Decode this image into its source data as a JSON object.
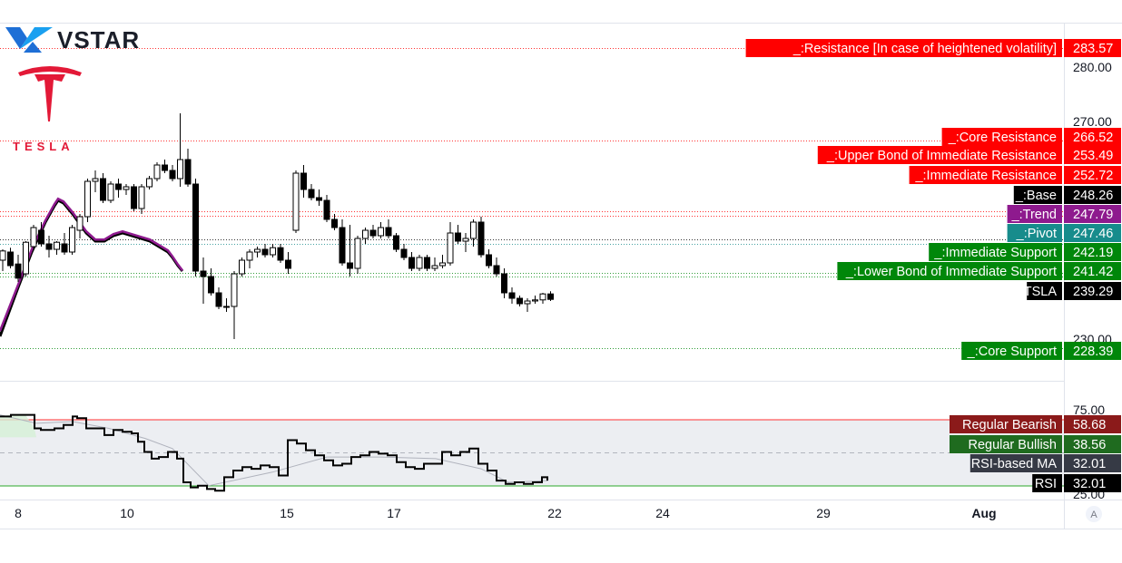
{
  "brand": {
    "name": "VSTAR",
    "tesla_wordmark": "TESLA"
  },
  "colors": {
    "resistance": "#ff0000",
    "support": "#00870a",
    "base": "#000000",
    "trend": "#8e1a8e",
    "pivot": "#178c8c",
    "price": "#000000",
    "rsi_bearish": "#8b1a1a",
    "rsi_bullish": "#1f6b1f",
    "rsi_ma": "#363a45",
    "upper_band_line": "#ff3030",
    "lower_band_line": "#2ba82b"
  },
  "chart_data": [
    {
      "type": "candlestick",
      "symbol": "TSLA",
      "x_ticks": [
        "8",
        "10",
        "15",
        "17",
        "22",
        "24",
        "29",
        "Aug"
      ],
      "y_ticks": [
        230.0,
        270.0,
        280.0
      ],
      "y_tick_labels": [
        "230.00",
        "270.00",
        "280.00"
      ],
      "ylim": [
        224,
        290
      ],
      "candles": [
        [
          244.5,
          246.5,
          242.5,
          246.2
        ],
        [
          246.0,
          246.8,
          243.0,
          243.5
        ],
        [
          243.8,
          245.5,
          240.5,
          241.2
        ],
        [
          242.0,
          248.0,
          241.5,
          247.8
        ],
        [
          247.0,
          251.0,
          246.5,
          250.5
        ],
        [
          250.0,
          251.5,
          247.0,
          247.5
        ],
        [
          247.5,
          249.0,
          245.0,
          246.5
        ],
        [
          246.5,
          248.0,
          245.5,
          247.8
        ],
        [
          247.5,
          249.5,
          245.5,
          246.0
        ],
        [
          246.0,
          251.0,
          245.5,
          250.5
        ],
        [
          250.0,
          253.0,
          248.5,
          252.5
        ],
        [
          252.5,
          259.5,
          251.5,
          259.0
        ],
        [
          259.0,
          261.0,
          257.0,
          259.5
        ],
        [
          259.5,
          260.5,
          255.0,
          255.5
        ],
        [
          255.5,
          259.0,
          255.0,
          258.5
        ],
        [
          258.5,
          259.5,
          256.0,
          257.5
        ],
        [
          257.5,
          258.5,
          256.5,
          258.0
        ],
        [
          258.0,
          258.5,
          253.5,
          254.0
        ],
        [
          254.0,
          258.5,
          253.0,
          258.0
        ],
        [
          258.0,
          260.0,
          257.5,
          259.5
        ],
        [
          259.5,
          262.5,
          259.0,
          262.0
        ],
        [
          262.0,
          263.0,
          260.5,
          261.0
        ],
        [
          261.0,
          262.0,
          259.0,
          259.5
        ],
        [
          259.5,
          271.5,
          258.0,
          263.0
        ],
        [
          263.0,
          265.0,
          258.0,
          258.5
        ],
        [
          258.5,
          259.5,
          241.5,
          242.5
        ],
        [
          242.5,
          245.0,
          236.5,
          241.5
        ],
        [
          241.5,
          243.0,
          238.0,
          238.5
        ],
        [
          238.5,
          239.5,
          235.5,
          236.0
        ],
        [
          236.0,
          237.5,
          235.0,
          236.0
        ],
        [
          236.0,
          242.5,
          230.0,
          242.0
        ],
        [
          242.0,
          245.0,
          241.5,
          244.5
        ],
        [
          244.5,
          246.5,
          243.0,
          246.0
        ],
        [
          246.0,
          247.0,
          245.0,
          246.5
        ],
        [
          246.5,
          247.5,
          245.0,
          245.5
        ],
        [
          245.5,
          247.5,
          245.0,
          246.8
        ],
        [
          246.8,
          247.5,
          244.0,
          244.5
        ],
        [
          244.5,
          246.0,
          242.0,
          243.0
        ],
        [
          250.0,
          261.0,
          249.5,
          260.5
        ],
        [
          260.5,
          262.0,
          256.0,
          257.5
        ],
        [
          257.5,
          258.5,
          255.5,
          256.0
        ],
        [
          256.0,
          257.5,
          254.5,
          255.5
        ],
        [
          255.5,
          256.5,
          251.5,
          252.0
        ],
        [
          252.0,
          253.0,
          250.0,
          250.5
        ],
        [
          250.5,
          252.0,
          243.5,
          244.0
        ],
        [
          244.0,
          251.0,
          241.5,
          243.0
        ],
        [
          243.0,
          249.0,
          242.0,
          248.5
        ],
        [
          248.5,
          250.5,
          247.5,
          250.0
        ],
        [
          250.0,
          251.0,
          248.5,
          249.0
        ],
        [
          249.0,
          251.5,
          248.5,
          250.5
        ],
        [
          250.5,
          252.0,
          248.5,
          249.0
        ],
        [
          249.0,
          249.5,
          246.0,
          246.5
        ],
        [
          246.5,
          247.5,
          244.5,
          245.0
        ],
        [
          245.0,
          246.0,
          242.5,
          243.0
        ],
        [
          243.0,
          245.5,
          242.5,
          245.0
        ],
        [
          245.0,
          245.5,
          242.5,
          243.0
        ],
        [
          243.0,
          245.0,
          242.5,
          243.5
        ],
        [
          243.5,
          245.5,
          243.0,
          244.0
        ],
        [
          244.0,
          251.5,
          243.5,
          249.5
        ],
        [
          249.5,
          251.0,
          247.5,
          248.0
        ],
        [
          248.0,
          249.5,
          246.0,
          248.5
        ],
        [
          248.5,
          252.0,
          247.0,
          251.5
        ],
        [
          251.5,
          252.5,
          245.0,
          245.5
        ],
        [
          245.5,
          246.5,
          243.0,
          243.5
        ],
        [
          243.5,
          245.0,
          241.5,
          242.0
        ],
        [
          242.0,
          243.0,
          237.5,
          238.5
        ],
        [
          238.5,
          239.5,
          236.5,
          237.5
        ],
        [
          237.5,
          238.0,
          236.0,
          236.5
        ],
        [
          236.5,
          237.5,
          235.0,
          237.0
        ],
        [
          237.0,
          238.0,
          236.5,
          237.2
        ],
        [
          237.2,
          238.5,
          236.5,
          238.3
        ],
        [
          238.3,
          238.8,
          237.0,
          237.3
        ]
      ],
      "ma_black": [
        [
          0,
          230.5
        ],
        [
          20,
          239.5
        ],
        [
          35,
          246.0
        ],
        [
          50,
          251.5
        ],
        [
          60,
          254.5
        ],
        [
          64,
          255.5
        ],
        [
          70,
          255.0
        ],
        [
          80,
          253.0
        ],
        [
          95,
          249.5
        ],
        [
          105,
          248.0
        ],
        [
          115,
          248.0
        ],
        [
          125,
          249.0
        ],
        [
          135,
          249.5
        ],
        [
          145,
          249.0
        ],
        [
          155,
          248.5
        ],
        [
          165,
          248.0
        ],
        [
          175,
          247.0
        ],
        [
          185,
          246.0
        ],
        [
          190,
          245.0
        ],
        [
          196,
          243.5
        ],
        [
          201,
          242.5
        ]
      ],
      "ma_purple": [
        [
          0,
          231.5
        ],
        [
          20,
          240.0
        ],
        [
          35,
          246.5
        ],
        [
          50,
          251.8
        ],
        [
          60,
          254.8
        ],
        [
          64,
          255.8
        ],
        [
          70,
          255.3
        ],
        [
          80,
          253.3
        ],
        [
          95,
          249.8
        ],
        [
          105,
          248.3
        ],
        [
          115,
          248.3
        ],
        [
          125,
          249.3
        ],
        [
          135,
          249.8
        ],
        [
          145,
          249.3
        ],
        [
          155,
          248.8
        ],
        [
          165,
          248.3
        ],
        [
          175,
          247.3
        ],
        [
          185,
          246.3
        ],
        [
          190,
          245.2
        ],
        [
          196,
          243.7
        ],
        [
          201,
          242.6
        ]
      ],
      "levels": [
        {
          "label": "_:Resistance [In case of heightened volatility]",
          "value": 283.57,
          "value_label": "283.57",
          "kind": "resistance",
          "line": "dotted"
        },
        {
          "label": "_:Core Resistance",
          "value": 266.52,
          "value_label": "266.52",
          "kind": "resistance",
          "line": "dotted"
        },
        {
          "label": "_:Upper Bond of Immediate Resistance",
          "value": 253.49,
          "value_label": "253.49",
          "kind": "resistance",
          "line": "dotted"
        },
        {
          "label": "_:Immediate Resistance",
          "value": 252.72,
          "value_label": "252.72",
          "kind": "resistance",
          "line": "dotted"
        },
        {
          "label": "_:Base",
          "value": 248.26,
          "value_label": "248.26",
          "kind": "base",
          "line": "dotted"
        },
        {
          "label": "_:Trend",
          "value": 247.79,
          "value_label": "247.79",
          "kind": "trend",
          "line": "none"
        },
        {
          "label": "_:Pivot",
          "value": 247.46,
          "value_label": "247.46",
          "kind": "pivot",
          "line": "dotted"
        },
        {
          "label": "_:Immediate Support",
          "value": 242.19,
          "value_label": "242.19",
          "kind": "support",
          "line": "dotted"
        },
        {
          "label": "_:Lower Bond of Immediate Support",
          "value": 241.42,
          "value_label": "241.42",
          "kind": "support",
          "line": "dotted"
        },
        {
          "label": "TSLA",
          "value": 239.29,
          "value_label": "239.29",
          "kind": "price",
          "line": "none"
        },
        {
          "label": "_:Core Support",
          "value": 228.39,
          "value_label": "228.39",
          "kind": "support",
          "line": "dotted"
        }
      ]
    },
    {
      "type": "line",
      "name": "RSI",
      "y_tick_labels": [
        "75.00",
        "25.00"
      ],
      "ylim": [
        22,
        80
      ],
      "upper_band": 58.68,
      "lower_band": 32.01,
      "rsi": [
        [
          0,
          71
        ],
        [
          12,
          72
        ],
        [
          28,
          72
        ],
        [
          38,
          64
        ],
        [
          45,
          63
        ],
        [
          60,
          64
        ],
        [
          70,
          66
        ],
        [
          80,
          71
        ],
        [
          85,
          70
        ],
        [
          95,
          64
        ],
        [
          105,
          64
        ],
        [
          115,
          60
        ],
        [
          125,
          63
        ],
        [
          135,
          62
        ],
        [
          145,
          61
        ],
        [
          152,
          56
        ],
        [
          159,
          50
        ],
        [
          167,
          46
        ],
        [
          175,
          47
        ],
        [
          185,
          50
        ],
        [
          195,
          46
        ],
        [
          202,
          32
        ],
        [
          210,
          29
        ],
        [
          218,
          30
        ],
        [
          228,
          28
        ],
        [
          237,
          27
        ],
        [
          247,
          35
        ],
        [
          257,
          39
        ],
        [
          267,
          41
        ],
        [
          277,
          40
        ],
        [
          287,
          42
        ],
        [
          297,
          41
        ],
        [
          307,
          36
        ],
        [
          317,
          57
        ],
        [
          327,
          55
        ],
        [
          337,
          51
        ],
        [
          347,
          48
        ],
        [
          357,
          45
        ],
        [
          367,
          42
        ],
        [
          377,
          43
        ],
        [
          387,
          47
        ],
        [
          397,
          48
        ],
        [
          407,
          50
        ],
        [
          417,
          49
        ],
        [
          427,
          48
        ],
        [
          437,
          44
        ],
        [
          447,
          41
        ],
        [
          457,
          40
        ],
        [
          467,
          43
        ],
        [
          477,
          43
        ],
        [
          487,
          50
        ],
        [
          497,
          48
        ],
        [
          507,
          50
        ],
        [
          517,
          52
        ],
        [
          527,
          43
        ],
        [
          537,
          39
        ],
        [
          547,
          33
        ],
        [
          557,
          31
        ],
        [
          567,
          32
        ],
        [
          577,
          31
        ],
        [
          587,
          32
        ],
        [
          597,
          35
        ],
        [
          603,
          33
        ]
      ],
      "rsi_ma": [
        [
          0,
          72
        ],
        [
          40,
          67
        ],
        [
          80,
          68
        ],
        [
          120,
          64
        ],
        [
          160,
          58
        ],
        [
          190,
          52
        ],
        [
          230,
          30
        ],
        [
          300,
          38
        ],
        [
          360,
          47
        ],
        [
          420,
          47
        ],
        [
          480,
          46
        ],
        [
          530,
          40
        ],
        [
          560,
          32
        ],
        [
          603,
          33
        ]
      ],
      "labels": [
        {
          "label": "Regular Bearish",
          "value_label": "58.68",
          "kind": "bearish"
        },
        {
          "label": "Regular Bullish",
          "value_label": "38.56",
          "kind": "bullish"
        },
        {
          "label": "RSI-based MA",
          "value_label": "32.01",
          "kind": "ma"
        },
        {
          "label": "RSI",
          "value_label": "32.01",
          "kind": "rsi"
        }
      ]
    }
  ],
  "toolbar": {
    "auto_button": "A"
  }
}
